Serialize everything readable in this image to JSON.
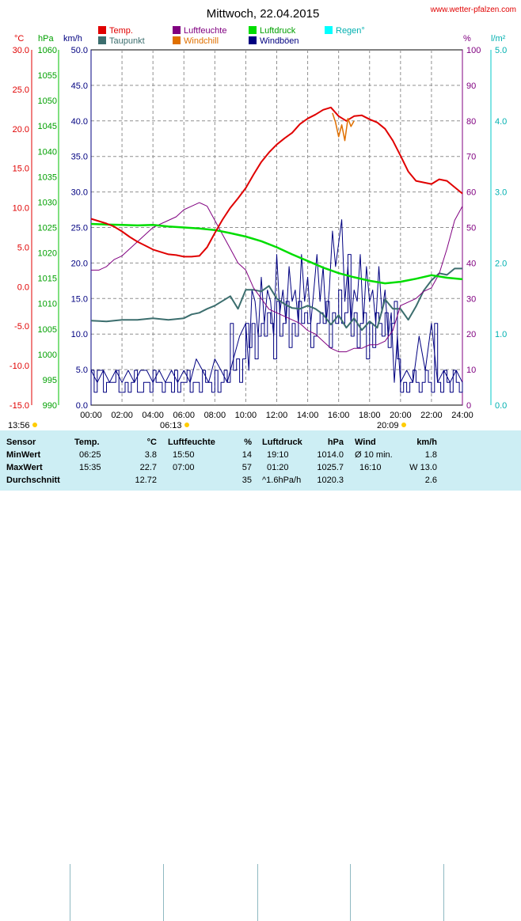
{
  "site": "www.wetter-pfalzen.com",
  "title": "Mittwoch, 22.04.2015",
  "colors": {
    "temp": "#e00000",
    "dew": "#3c6e6e",
    "humidity": "#800080",
    "windchill": "#e07000",
    "pressure": "#00dd00",
    "rain": "#00d8d8",
    "wind": "#000080",
    "gust": "#000080",
    "axis_temp": "#e00000",
    "axis_hpa": "#00a000",
    "axis_wind": "#000080",
    "axis_pct": "#800080",
    "axis_rain": "#00b0b0",
    "grid": "#909090"
  },
  "legend": [
    {
      "label": "Temp.",
      "color": "#e00000"
    },
    {
      "label": "Luftfeuchte",
      "color": "#800080"
    },
    {
      "label": "Luftdruck",
      "color": "#00dd00"
    },
    {
      "label": "Regen°",
      "color": "#00ffff"
    },
    {
      "label": "Taupunkt",
      "color": "#3c6e6e"
    },
    {
      "label": "Windchill",
      "color": "#e07000"
    },
    {
      "label": "Windböen",
      "color": "#000080"
    }
  ],
  "units": {
    "temp": "°C",
    "hpa": "hPa",
    "wind": "km/h",
    "pct": "%",
    "rain": "l/m²"
  },
  "sun": {
    "sunrise_marker": "06:13",
    "sunset_marker": "20:09",
    "start": "13:56"
  },
  "chart_data": {
    "type": "line",
    "x_range": [
      0,
      24
    ],
    "x_ticks": [
      "00:00",
      "02:00",
      "04:00",
      "06:00",
      "08:00",
      "10:00",
      "12:00",
      "14:00",
      "16:00",
      "18:00",
      "20:00",
      "22:00",
      "24:00"
    ],
    "axes": {
      "temp_c": {
        "range": [
          -15,
          30
        ],
        "ticks": [
          "30.0",
          "25.0",
          "20.0",
          "15.0",
          "10.0",
          "5.0",
          "0.0",
          "-5.0",
          "-10.0",
          "-15.0"
        ]
      },
      "pressure_hpa": {
        "range": [
          990,
          1060
        ],
        "ticks": [
          "1060",
          "1055",
          "1050",
          "1045",
          "1040",
          "1035",
          "1030",
          "1025",
          "1020",
          "1015",
          "1010",
          "1005",
          "1000",
          "995",
          "990"
        ]
      },
      "wind_kmh": {
        "range": [
          0,
          50
        ],
        "ticks": [
          "50.0",
          "45.0",
          "40.0",
          "35.0",
          "30.0",
          "25.0",
          "20.0",
          "15.0",
          "10.0",
          "5.0",
          "0.0"
        ]
      },
      "humidity_pct": {
        "range": [
          0,
          100
        ],
        "ticks": [
          "100",
          "90",
          "80",
          "70",
          "60",
          "50",
          "40",
          "30",
          "20",
          "10",
          "0"
        ]
      },
      "rain_lm2": {
        "range": [
          0,
          5
        ],
        "ticks": [
          "5.0",
          "4.0",
          "3.0",
          "2.0",
          "1.0",
          "0.0"
        ]
      }
    },
    "series": [
      {
        "name": "Temp.",
        "axis": "temp_c",
        "x": [
          0,
          0.5,
          1,
          1.5,
          2,
          2.5,
          3,
          3.5,
          4,
          4.5,
          5,
          5.5,
          6,
          6.5,
          7,
          7.5,
          8,
          8.5,
          9,
          9.5,
          10,
          10.5,
          11,
          11.5,
          12,
          12.5,
          13,
          13.5,
          14,
          14.5,
          15,
          15.5,
          16,
          16.5,
          17,
          17.5,
          18,
          18.5,
          19,
          19.5,
          20,
          20.5,
          21,
          21.5,
          22,
          22.5,
          23,
          23.5,
          24
        ],
        "y": [
          8.6,
          8.3,
          8.0,
          7.6,
          7.0,
          6.3,
          5.7,
          5.2,
          4.7,
          4.4,
          4.1,
          4.0,
          3.8,
          3.8,
          3.9,
          5.0,
          6.8,
          8.5,
          10.0,
          11.2,
          12.5,
          14.2,
          15.8,
          17.0,
          18.0,
          18.8,
          19.5,
          20.6,
          21.3,
          21.8,
          22.4,
          22.7,
          21.6,
          21.0,
          21.6,
          21.7,
          21.2,
          20.8,
          20.0,
          18.5,
          16.6,
          14.6,
          13.4,
          13.2,
          13.0,
          13.6,
          13.4,
          12.6,
          11.8
        ]
      },
      {
        "name": "Taupunkt",
        "axis": "temp_c",
        "x": [
          0,
          1,
          2,
          3,
          4,
          5,
          6,
          6.5,
          7,
          7.5,
          8,
          8.5,
          9,
          9.5,
          10,
          10.5,
          11,
          11.5,
          12,
          12.5,
          13,
          13.5,
          14,
          14.5,
          15,
          15.5,
          16,
          16.5,
          17,
          17.5,
          18,
          18.5,
          19,
          19.5,
          20,
          20.5,
          21,
          21.5,
          22,
          22.5,
          23,
          23.5,
          24
        ],
        "y": [
          -4.3,
          -4.4,
          -4.2,
          -4.2,
          -4.0,
          -4.2,
          -4.0,
          -3.5,
          -3.3,
          -2.8,
          -2.4,
          -1.8,
          -1.2,
          -2.8,
          -0.4,
          -0.4,
          -0.6,
          0.1,
          -1.5,
          -2.2,
          -2.7,
          -2.8,
          -2.4,
          -2.8,
          -3.5,
          -4.8,
          -3.6,
          -5.2,
          -4.0,
          -5.5,
          -4.4,
          -5.2,
          -1.6,
          -2.8,
          -2.8,
          -4.2,
          -2.5,
          -0.5,
          0.8,
          1.7,
          1.5,
          2.3,
          2.3
        ]
      },
      {
        "name": "Luftfeuchte",
        "axis": "humidity_pct",
        "x": [
          0,
          0.5,
          1,
          1.5,
          2,
          2.5,
          3,
          3.5,
          4,
          4.5,
          5,
          5.5,
          6,
          6.5,
          7,
          7.5,
          8,
          8.5,
          9,
          9.5,
          10,
          10.5,
          11,
          11.5,
          12,
          12.5,
          13,
          13.5,
          14,
          14.5,
          15,
          15.5,
          16,
          16.5,
          17,
          17.5,
          18,
          18.5,
          19,
          19.5,
          20,
          20.5,
          21,
          21.5,
          22,
          22.5,
          23,
          23.5,
          24
        ],
        "y": [
          38,
          38,
          39,
          41,
          42,
          44,
          46,
          48,
          50,
          51,
          52,
          53,
          55,
          56,
          57,
          56,
          52,
          48,
          44,
          40,
          38,
          33,
          30,
          27,
          26,
          25,
          24,
          23,
          21,
          20,
          18,
          16,
          15,
          15,
          16,
          16,
          17,
          17,
          18,
          21,
          28,
          29,
          30,
          32,
          33,
          37,
          44,
          52,
          56
        ]
      },
      {
        "name": "Luftdruck",
        "axis": "pressure_hpa",
        "x": [
          0,
          1,
          2,
          3,
          4,
          5,
          6,
          7,
          8,
          9,
          10,
          11,
          12,
          13,
          14,
          15,
          16,
          17,
          18,
          19,
          20,
          21,
          22,
          23,
          24
        ],
        "y": [
          1025.7,
          1025.6,
          1025.5,
          1025.4,
          1025.5,
          1025.2,
          1025.0,
          1024.8,
          1024.5,
          1023.9,
          1023.2,
          1022.3,
          1021.1,
          1019.7,
          1018.4,
          1017.1,
          1016.0,
          1015.2,
          1014.5,
          1014.0,
          1014.3,
          1014.9,
          1015.6,
          1015.1,
          1014.8
        ]
      },
      {
        "name": "Windchill",
        "axis": "temp_c",
        "x": [
          15.6,
          15.8,
          16.0,
          16.2,
          16.4,
          16.6,
          16.8,
          17.0
        ],
        "y": [
          22.0,
          20.8,
          19.0,
          20.5,
          18.5,
          21.3,
          20.3,
          21.0
        ]
      },
      {
        "name": "Wind",
        "axis": "wind_kmh",
        "x": [
          0,
          0.2,
          0.4,
          0.6,
          0.8,
          1,
          1.2,
          1.4,
          1.6,
          1.8,
          2,
          2.2,
          2.4,
          2.6,
          2.8,
          3,
          3.2,
          3.4,
          3.6,
          3.8,
          4,
          4.2,
          4.4,
          4.6,
          4.8,
          5,
          5.2,
          5.4,
          5.6,
          5.8,
          6,
          6.2,
          6.4,
          6.6,
          6.8,
          7,
          7.2,
          7.4,
          7.6,
          7.8,
          8,
          8.2,
          8.4,
          8.6,
          8.8,
          9,
          9.2,
          9.4,
          9.6,
          9.8,
          10,
          10.2,
          10.4,
          10.6,
          10.8,
          11,
          11.2,
          11.4,
          11.6,
          11.8,
          12,
          12.2,
          12.4,
          12.6,
          12.8,
          13,
          13.2,
          13.4,
          13.6,
          13.8,
          14,
          14.2,
          14.4,
          14.6,
          14.8,
          15,
          15.2,
          15.4,
          15.6,
          15.8,
          16,
          16.2,
          16.4,
          16.6,
          16.8,
          17,
          17.2,
          17.4,
          17.6,
          17.8,
          18,
          18.2,
          18.4,
          18.6,
          18.8,
          19,
          19.2,
          19.4,
          19.6,
          19.8,
          20,
          20.2,
          20.4,
          20.6,
          20.8,
          21,
          21.2,
          21.4,
          21.6,
          21.8,
          22,
          22.2,
          22.4,
          22.6,
          22.8,
          23,
          23.2,
          23.4,
          23.6,
          23.8,
          24
        ],
        "y": [
          4.9,
          1.8,
          4.9,
          4.9,
          1.8,
          3.2,
          3.2,
          3.2,
          4.9,
          1.8,
          1.8,
          3.2,
          1.8,
          3.2,
          4.9,
          1.8,
          1.8,
          3.2,
          3.2,
          1.8,
          4.9,
          3.2,
          3.2,
          1.8,
          3.2,
          3.2,
          1.8,
          4.9,
          1.8,
          3.2,
          3.2,
          4.9,
          1.8,
          3.2,
          3.2,
          1.8,
          4.9,
          3.2,
          3.2,
          1.8,
          4.9,
          1.8,
          3.2,
          4.9,
          3.2,
          11.5,
          4.9,
          6.5,
          3.2,
          6.5,
          11.5,
          8.1,
          11.5,
          6.5,
          9.7,
          11.5,
          9.7,
          13.0,
          11.5,
          6.5,
          14.6,
          9.7,
          11.5,
          14.6,
          8.1,
          11.5,
          9.7,
          14.6,
          11.5,
          13.0,
          11.5,
          8.1,
          9.7,
          11.5,
          13.0,
          11.5,
          14.6,
          8.1,
          13.0,
          11.5,
          16.2,
          11.5,
          13.0,
          21.2,
          9.7,
          13.0,
          8.1,
          11.5,
          13.0,
          6.5,
          11.5,
          8.1,
          13.0,
          11.5,
          9.7,
          13.0,
          8.1,
          11.5,
          14.6,
          6.5,
          1.8,
          3.2,
          1.8,
          3.2,
          4.9,
          3.2,
          1.8,
          3.2,
          4.9,
          3.2,
          1.8,
          11.5,
          3.2,
          1.8,
          4.9,
          3.2,
          1.8,
          4.9,
          3.2,
          1.8,
          3.2
        ]
      },
      {
        "name": "Windböen",
        "axis": "wind_kmh",
        "x": [
          0,
          0.4,
          0.8,
          1.2,
          1.6,
          2,
          2.4,
          2.8,
          3.2,
          3.6,
          4,
          4.4,
          4.8,
          5.2,
          5.6,
          6,
          6.4,
          6.8,
          7.2,
          7.6,
          8,
          8.4,
          8.8,
          9.2,
          9.6,
          10,
          10.2,
          10.4,
          10.6,
          10.8,
          11,
          11.2,
          11.4,
          11.6,
          11.8,
          12,
          12.2,
          12.4,
          12.6,
          12.8,
          13,
          13.2,
          13.4,
          13.6,
          13.8,
          14,
          14.2,
          14.4,
          14.6,
          14.8,
          15,
          15.2,
          15.4,
          15.6,
          15.8,
          16,
          16.2,
          16.4,
          16.6,
          16.8,
          17,
          17.2,
          17.4,
          17.6,
          17.8,
          18,
          18.2,
          18.4,
          18.6,
          18.8,
          19,
          19.2,
          19.4,
          19.6,
          19.8,
          20,
          20.4,
          20.8,
          21.2,
          21.6,
          22,
          22.4,
          22.8,
          23.2,
          23.6,
          24
        ],
        "y": [
          4.9,
          3.2,
          4.9,
          3.2,
          4.9,
          3.2,
          4.9,
          3.2,
          4.9,
          4.9,
          3.2,
          4.9,
          3.2,
          4.9,
          3.2,
          4.9,
          3.2,
          6.5,
          4.9,
          3.2,
          6.5,
          4.9,
          3.2,
          6.5,
          9.7,
          11.5,
          4.9,
          16.2,
          14.6,
          9.7,
          18.0,
          11.5,
          16.2,
          14.6,
          9.7,
          21.2,
          13.0,
          16.2,
          11.5,
          19.5,
          14.6,
          16.2,
          11.5,
          21.2,
          14.6,
          18.0,
          11.5,
          16.2,
          21.2,
          14.6,
          19.5,
          11.5,
          16.2,
          24.5,
          19.5,
          22.8,
          26.1,
          14.6,
          19.5,
          11.5,
          16.2,
          14.6,
          21.2,
          11.5,
          19.5,
          14.6,
          16.2,
          11.5,
          19.5,
          13.0,
          16.2,
          9.7,
          13.0,
          3.2,
          9.7,
          3.2,
          4.9,
          3.2,
          9.7,
          4.9,
          11.5,
          3.2,
          4.9,
          3.2,
          4.9,
          3.2
        ]
      }
    ]
  },
  "stats": {
    "headers": {
      "sensor": "Sensor",
      "temp": "Temp.",
      "temp_unit": "°C",
      "hum": "Luftfeuchte",
      "hum_unit": "%",
      "press": "Luftdruck",
      "press_unit": "hPa",
      "wind": "Wind",
      "wind_unit": "km/h"
    },
    "rows": [
      {
        "label": "MinWert",
        "temp_time": "06:25",
        "temp_val": "3.8",
        "hum_time": "15:50",
        "hum_val": "14",
        "press_time": "19:10",
        "press_val": "1014.0",
        "wind_time": "Ø 10 min.",
        "wind_val": "1.8"
      },
      {
        "label": "MaxWert",
        "temp_time": "15:35",
        "temp_val": "22.7",
        "hum_time": "07:00",
        "hum_val": "57",
        "press_time": "01:20",
        "press_val": "1025.7",
        "wind_time": "16:10",
        "wind_val": "W 13.0"
      },
      {
        "label": "Durchschnitt",
        "temp_time": "",
        "temp_val": "12.72",
        "hum_time": "",
        "hum_val": "35",
        "press_time": "^1.6hPa/h",
        "press_val": "1020.3",
        "wind_time": "",
        "wind_val": "2.6"
      }
    ]
  }
}
